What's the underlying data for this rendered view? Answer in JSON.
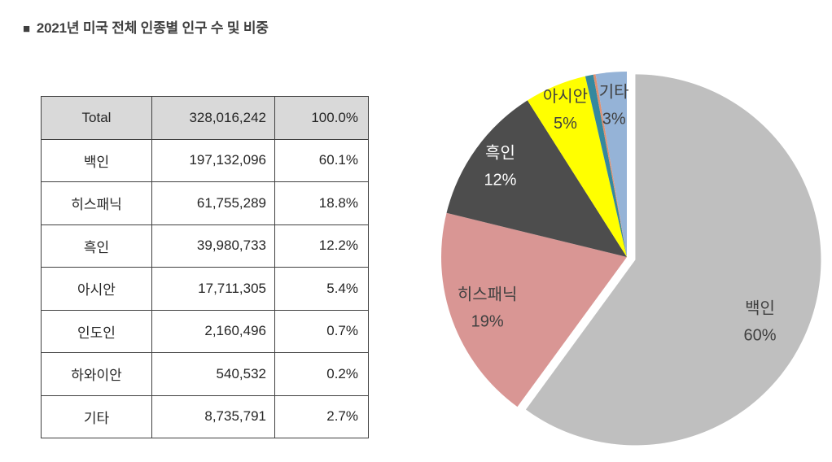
{
  "title": {
    "bullet": "■",
    "text": "2021년 미국 전체 인종별 인구 수 및 비중"
  },
  "table": {
    "rows": [
      {
        "label": "Total",
        "count": "328,016,242",
        "share": "100.0%",
        "header": true
      },
      {
        "label": "백인",
        "count": "197,132,096",
        "share": "60.1%",
        "header": false
      },
      {
        "label": "히스패닉",
        "count": "61,755,289",
        "share": "18.8%",
        "header": false
      },
      {
        "label": "흑인",
        "count": "39,980,733",
        "share": "12.2%",
        "header": false
      },
      {
        "label": "아시안",
        "count": "17,711,305",
        "share": "5.4%",
        "header": false
      },
      {
        "label": "인도인",
        "count": "2,160,496",
        "share": "0.7%",
        "header": false
      },
      {
        "label": "하와이안",
        "count": "540,532",
        "share": "0.2%",
        "header": false
      },
      {
        "label": "기타",
        "count": "8,735,791",
        "share": "2.7%",
        "header": false
      }
    ]
  },
  "chart_data": {
    "type": "pie",
    "title": "",
    "legend": "none",
    "labels_position": "inside",
    "start_angle_deg": 0,
    "direction": "clockwise",
    "slices": [
      {
        "name": "백인",
        "value": 60.1,
        "display_pct": "60%",
        "color": "#bfbfbf",
        "label_color": "#404040",
        "exploded": true
      },
      {
        "name": "히스패닉",
        "value": 18.8,
        "display_pct": "19%",
        "color": "#d99694",
        "label_color": "#404040",
        "exploded": false
      },
      {
        "name": "흑인",
        "value": 12.2,
        "display_pct": "12%",
        "color": "#4d4d4d",
        "label_color": "#ffffff",
        "exploded": false
      },
      {
        "name": "아시안",
        "value": 5.4,
        "display_pct": "5%",
        "color": "#ffff00",
        "label_color": "#404040",
        "exploded": false
      },
      {
        "name": "인도인",
        "value": 0.7,
        "display_pct": "",
        "color": "#35889e",
        "label_color": "",
        "exploded": false
      },
      {
        "name": "하와이안",
        "value": 0.2,
        "display_pct": "",
        "color": "#e09070",
        "label_color": "",
        "exploded": false
      },
      {
        "name": "기타",
        "value": 2.7,
        "display_pct": "3%",
        "color": "#95b3d7",
        "label_color": "#404040",
        "exploded": false
      }
    ]
  }
}
